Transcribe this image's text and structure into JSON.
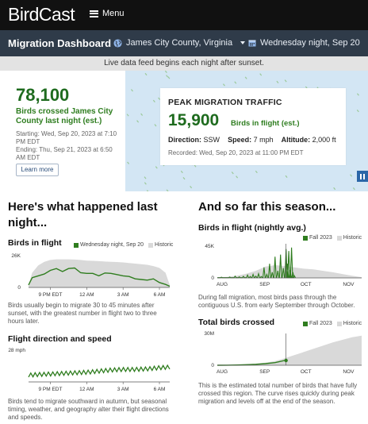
{
  "header": {
    "logo": "BirdCast",
    "menu_label": "Menu"
  },
  "dashboard": {
    "title": "Migration Dashboard",
    "location": "James City County, Virginia",
    "date": "Wednesday night, Sep 20"
  },
  "info_bar": "Live data feed begins each night after sunset.",
  "summary": {
    "total": "78,100",
    "total_label": "Birds crossed James City County last night (est.)",
    "starting": "Starting: Wed, Sep 20, 2023 at 7:10 PM EDT",
    "ending": "Ending: Thu, Sep 21, 2023 at 6:50 AM EDT",
    "learn_more": "Learn more"
  },
  "peak": {
    "title": "PEAK MIGRATION TRAFFIC",
    "value": "15,900",
    "value_label": "Birds in flight (est.)",
    "direction_label": "Direction:",
    "direction": "SSW",
    "speed_label": "Speed:",
    "speed": "7 mph",
    "altitude_label": "Altitude:",
    "altitude": "2,000 ft",
    "recorded": "Recorded: Wed, Sep 20, 2023 at 11:00 PM EDT"
  },
  "colors": {
    "green": "#2f7d1f",
    "gray": "#d9d9d9",
    "dark_green": "#1e6b1e"
  },
  "last_night": {
    "heading": "Here's what happened last night...",
    "flight": {
      "title": "Birds in flight",
      "legend_current": "Wednesday night, Sep 20",
      "legend_historic": "Historic",
      "caption": "Birds usually begin to migrate 30 to 45 minutes after sunset, with the greatest number in flight two to three hours later."
    },
    "direction": {
      "title": "Flight direction and speed",
      "caption": "Birds tend to migrate southward in autumn, but seasonal timing, weather, and geography alter their flight directions and speeds."
    }
  },
  "season": {
    "heading": "And so far this season...",
    "nightly": {
      "title": "Birds in flight (nightly avg.)",
      "legend_current": "Fall 2023",
      "legend_historic": "Historic",
      "caption": "During fall migration, most birds pass through the contiguous U.S. from early September through October."
    },
    "total": {
      "title": "Total birds crossed",
      "legend_current": "Fall 2023",
      "legend_historic": "Historic",
      "caption": "This is the estimated total number of birds that have fully crossed this region. The curve rises quickly during peak migration and levels off at the end of the season."
    }
  },
  "chart_data": [
    {
      "type": "area",
      "name": "Birds in flight",
      "ylim": [
        0,
        26000
      ],
      "yticks": [
        "0",
        "26K"
      ],
      "xticks": [
        "9 PM EDT",
        "12 AM",
        "3 AM",
        "6 AM"
      ],
      "xtick_hours": [
        21,
        24,
        27,
        30
      ],
      "x_hours": [
        19.2,
        19.5,
        20,
        20.5,
        21,
        21.5,
        22,
        22.5,
        23,
        23.5,
        24,
        24.5,
        25,
        25.5,
        26,
        26.5,
        27,
        27.5,
        28,
        28.5,
        29,
        29.5,
        30,
        30.5,
        30.85
      ],
      "series": [
        {
          "name": "Historic",
          "values": [
            2000,
            12000,
            18000,
            21000,
            22500,
            23000,
            23000,
            23000,
            22800,
            22500,
            22000,
            21800,
            21500,
            21200,
            21000,
            20800,
            20500,
            20000,
            19500,
            19000,
            18500,
            17500,
            16000,
            12000,
            2000
          ]
        },
        {
          "name": "Wednesday night, Sep 20",
          "values": [
            2000,
            8000,
            9500,
            11000,
            14000,
            15500,
            13000,
            15500,
            15900,
            12000,
            11500,
            11500,
            9500,
            11800,
            11500,
            10500,
            9500,
            9000,
            7000,
            6500,
            6000,
            7000,
            4000,
            2500,
            1000
          ]
        }
      ]
    },
    {
      "type": "line",
      "name": "Flight direction and speed",
      "ylim": [
        0,
        28
      ],
      "yticks": [
        "28 mph"
      ],
      "xticks": [
        "9 PM EDT",
        "12 AM",
        "3 AM",
        "6 AM"
      ],
      "xtick_hours": [
        21,
        24,
        27,
        30
      ],
      "x_hours": [
        19.2,
        20,
        21,
        22,
        23,
        24,
        25,
        26,
        27,
        28,
        29,
        30,
        30.85
      ],
      "series": [
        {
          "name": "Speed",
          "values": [
            6,
            6.5,
            7,
            7.5,
            8,
            8.5,
            9.5,
            10.5,
            11,
            11,
            11.5,
            12.5,
            13
          ]
        }
      ]
    },
    {
      "type": "area",
      "name": "Birds in flight (nightly avg.)",
      "ylim": [
        0,
        45000
      ],
      "yticks": [
        "0",
        "45K"
      ],
      "xticks": [
        "AUG",
        "SEP",
        "OCT",
        "NOV"
      ],
      "xtick_days": [
        1,
        32,
        62,
        93
      ],
      "x_days": [
        1,
        8,
        15,
        22,
        29,
        36,
        43,
        50,
        57,
        64,
        71,
        78,
        85,
        92,
        99,
        106
      ],
      "series": [
        {
          "name": "Historic",
          "values": [
            1000,
            1500,
            3000,
            6000,
            10000,
            16000,
            18000,
            17000,
            15000,
            13000,
            12000,
            10000,
            8000,
            5500,
            3000,
            1000
          ]
        },
        {
          "name": "Fall 2023",
          "spikes": [
            [
              4,
              1000
            ],
            [
              10,
              1200
            ],
            [
              14,
              2500
            ],
            [
              17,
              1500
            ],
            [
              20,
              2200
            ],
            [
              23,
              4000
            ],
            [
              25,
              2000
            ],
            [
              27,
              5000
            ],
            [
              29,
              2500
            ],
            [
              31,
              6000
            ],
            [
              33,
              2000
            ],
            [
              35,
              15000
            ],
            [
              37,
              5000
            ],
            [
              39,
              20000
            ],
            [
              41,
              8000
            ],
            [
              43,
              30000
            ],
            [
              45,
              10000
            ],
            [
              47,
              33000
            ],
            [
              49,
              14000
            ],
            [
              51,
              41000
            ],
            [
              52,
              20000
            ],
            [
              53,
              38000
            ],
            [
              54,
              11000
            ],
            [
              55,
              43000
            ],
            [
              56,
              8000
            ],
            [
              57,
              3000
            ]
          ]
        }
      ],
      "current_day": 51
    },
    {
      "type": "line",
      "name": "Total birds crossed",
      "ylim": [
        0,
        30000000
      ],
      "yticks": [
        "0",
        "30M"
      ],
      "xticks": [
        "AUG",
        "SEP",
        "OCT",
        "NOV"
      ],
      "xtick_days": [
        1,
        32,
        62,
        93
      ],
      "x_days": [
        1,
        8,
        15,
        22,
        29,
        36,
        43,
        50,
        57,
        64,
        71,
        78,
        85,
        92,
        99,
        106
      ],
      "series": [
        {
          "name": "Historic",
          "values": [
            0,
            100000,
            300000,
            800000,
            1500000,
            2500000,
            4000000,
            6500000,
            9500000,
            12500000,
            15500000,
            18500000,
            21500000,
            24000000,
            26500000,
            28000000
          ]
        },
        {
          "name": "Fall 2023",
          "values": [
            0,
            100000,
            200000,
            500000,
            900000,
            1500000,
            2500000,
            4500000
          ]
        }
      ],
      "current_day": 51
    }
  ]
}
